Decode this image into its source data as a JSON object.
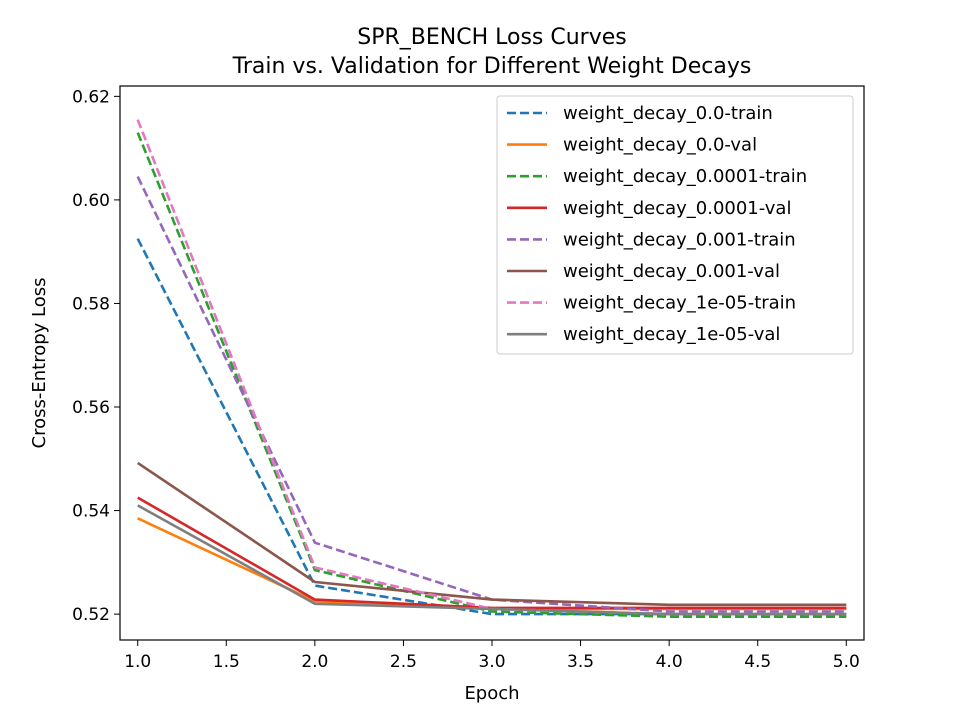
{
  "chart_data": {
    "type": "line",
    "title": "SPR_BENCH Loss Curves",
    "subtitle": "Train vs. Validation for Different Weight Decays",
    "xlabel": "Epoch",
    "ylabel": "Cross-Entropy Loss",
    "xlim": [
      0.9,
      5.1
    ],
    "ylim": [
      0.515,
      0.622
    ],
    "xticks": [
      "1.0",
      "1.5",
      "2.0",
      "2.5",
      "3.0",
      "3.5",
      "4.0",
      "4.5",
      "5.0"
    ],
    "yticks": [
      "0.52",
      "0.54",
      "0.56",
      "0.58",
      "0.60",
      "0.62"
    ],
    "legend_position": "top-right",
    "grid": false,
    "x": [
      1,
      2,
      3,
      4,
      5
    ],
    "series": [
      {
        "name": "weight_decay_0.0-train",
        "color": "#1f77b4",
        "dash": true,
        "values": [
          0.5925,
          0.5255,
          0.52,
          0.52,
          0.52
        ]
      },
      {
        "name": "weight_decay_0.0-val",
        "color": "#ff7f0e",
        "dash": false,
        "values": [
          0.5385,
          0.5225,
          0.521,
          0.521,
          0.521
        ]
      },
      {
        "name": "weight_decay_0.0001-train",
        "color": "#2ca02c",
        "dash": true,
        "values": [
          0.613,
          0.5285,
          0.5205,
          0.5195,
          0.5195
        ]
      },
      {
        "name": "weight_decay_0.0001-val",
        "color": "#d62728",
        "dash": false,
        "values": [
          0.5425,
          0.5228,
          0.5212,
          0.5212,
          0.5212
        ]
      },
      {
        "name": "weight_decay_0.001-train",
        "color": "#9467bd",
        "dash": true,
        "values": [
          0.6045,
          0.5338,
          0.5228,
          0.5205,
          0.5205
        ]
      },
      {
        "name": "weight_decay_0.001-val",
        "color": "#8c564b",
        "dash": false,
        "values": [
          0.5492,
          0.5262,
          0.5228,
          0.5218,
          0.5218
        ]
      },
      {
        "name": "weight_decay_1e-05-train",
        "color": "#e377c2",
        "dash": true,
        "values": [
          0.6155,
          0.529,
          0.521,
          0.52,
          0.52
        ]
      },
      {
        "name": "weight_decay_1e-05-val",
        "color": "#7f7f7f",
        "dash": false,
        "values": [
          0.541,
          0.522,
          0.521,
          0.52,
          0.52
        ]
      }
    ]
  }
}
